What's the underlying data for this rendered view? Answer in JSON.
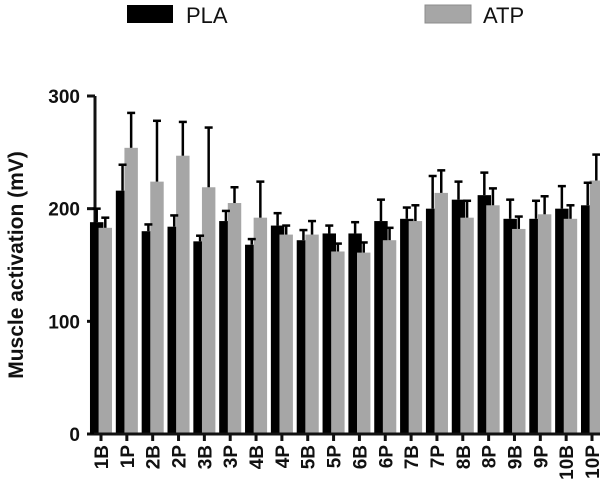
{
  "chart_data": {
    "type": "bar",
    "ylabel": "Muscle activation (mV)",
    "ylim": [
      0,
      300
    ],
    "yticks": [
      0,
      100,
      200,
      300
    ],
    "categories": [
      "1B",
      "1P",
      "2B",
      "2P",
      "3B",
      "3P",
      "4B",
      "4P",
      "5B",
      "5P",
      "6B",
      "6P",
      "7B",
      "7P",
      "8B",
      "8P",
      "9B",
      "9P",
      "10B",
      "10P"
    ],
    "series": [
      {
        "name": "PLA",
        "color": "#000000",
        "values": [
          188,
          216,
          180,
          184,
          171,
          189,
          168,
          185,
          172,
          178,
          178,
          189,
          191,
          200,
          208,
          212,
          191,
          191,
          200,
          203
        ],
        "errors": [
          12,
          23,
          6,
          10,
          5,
          9,
          5,
          11,
          9,
          7,
          10,
          19,
          10,
          29,
          16,
          20,
          17,
          16,
          20,
          20
        ]
      },
      {
        "name": "ATP",
        "color": "#a6a6a6",
        "values": [
          183,
          254,
          224,
          247,
          219,
          205,
          192,
          177,
          177,
          162,
          161,
          172,
          189,
          214,
          192,
          203,
          182,
          195,
          191,
          225
        ],
        "errors": [
          9,
          31,
          54,
          30,
          53,
          14,
          32,
          8,
          12,
          7,
          9,
          11,
          14,
          20,
          15,
          15,
          11,
          16,
          12,
          23
        ]
      }
    ],
    "legend_position": "top"
  }
}
